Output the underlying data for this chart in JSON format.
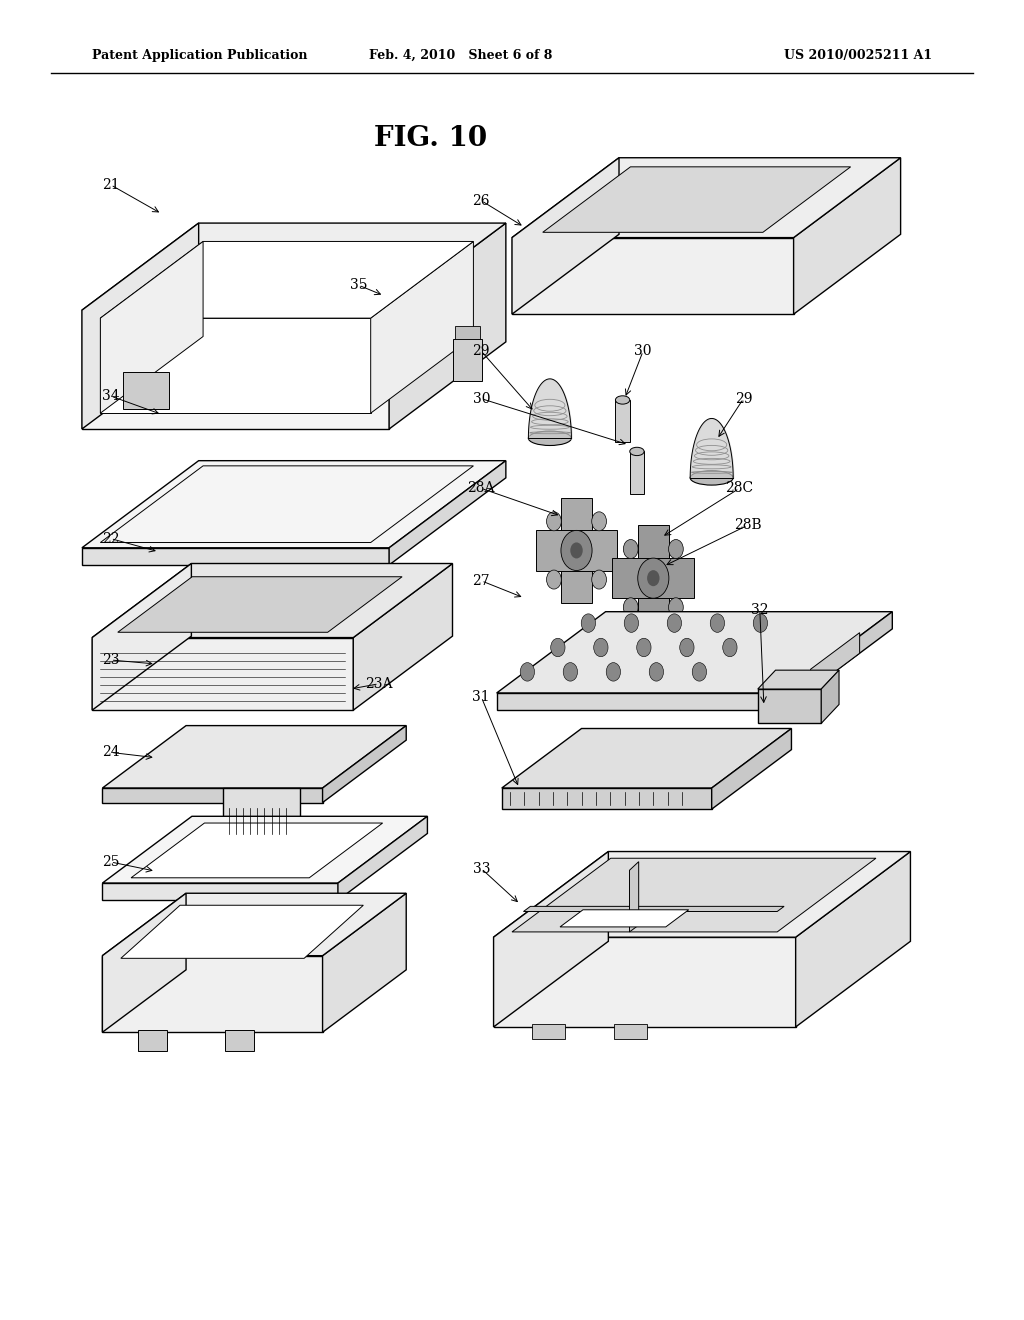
{
  "background_color": "#ffffff",
  "header_left": "Patent Application Publication",
  "header_center": "Feb. 4, 2010   Sheet 6 of 8",
  "header_right": "US 2010/0025211 A1",
  "fig_title": "FIG. 10"
}
